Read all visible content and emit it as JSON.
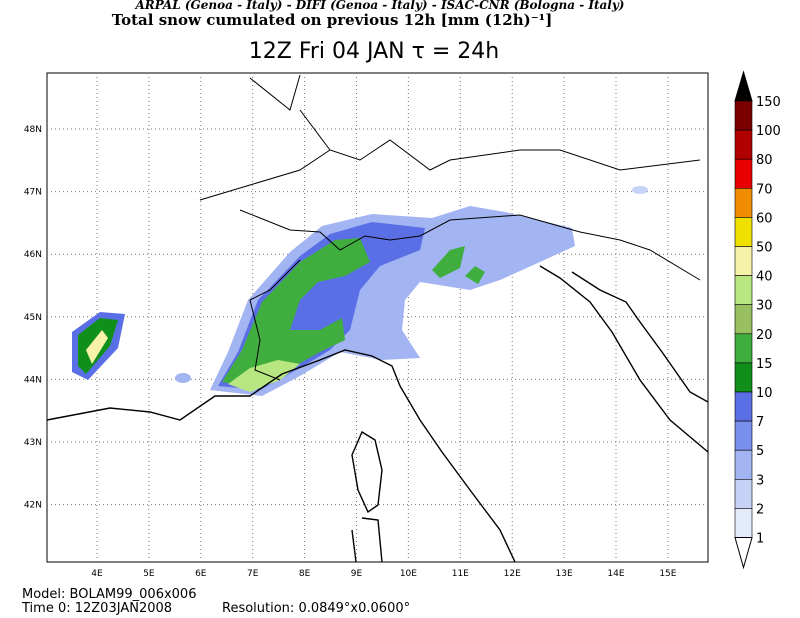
{
  "header": {
    "line1": "ARPAL (Genoa - Italy)  -  DIFI (Genoa - Italy)  -  ISAC-CNR (Bologna - Italy)",
    "line2": "Total snow cumulated on previous 12h [mm (12h)⁻¹]",
    "title": "12Z Fri 04 JAN  τ = 24h"
  },
  "map": {
    "lon_labels": [
      "4E",
      "5E",
      "6E",
      "7E",
      "8E",
      "9E",
      "10E",
      "11E",
      "12E",
      "13E",
      "14E",
      "15E"
    ],
    "lat_labels": [
      "48N",
      "47N",
      "46N",
      "45N",
      "44N",
      "43N",
      "42N"
    ]
  },
  "colorbar": {
    "levels": [
      150,
      100,
      80,
      70,
      60,
      50,
      40,
      30,
      20,
      15,
      10,
      7,
      5,
      3,
      2,
      1
    ],
    "colors": [
      "#000000",
      "#7a0000",
      "#b00000",
      "#e80000",
      "#f08c00",
      "#f0e000",
      "#f6f2a8",
      "#b8e680",
      "#98c060",
      "#3fae3f",
      "#10901a",
      "#5a6fe6",
      "#7a90ee",
      "#a2b4f2",
      "#c6d2f6",
      "#e4ebfb",
      "#ffffff"
    ]
  },
  "footer": {
    "model": "Model: BOLAM99_006x006",
    "time": "Time 0: 12Z03JAN2008",
    "resolution": "Resolution: 0.0849°x0.0600°"
  }
}
